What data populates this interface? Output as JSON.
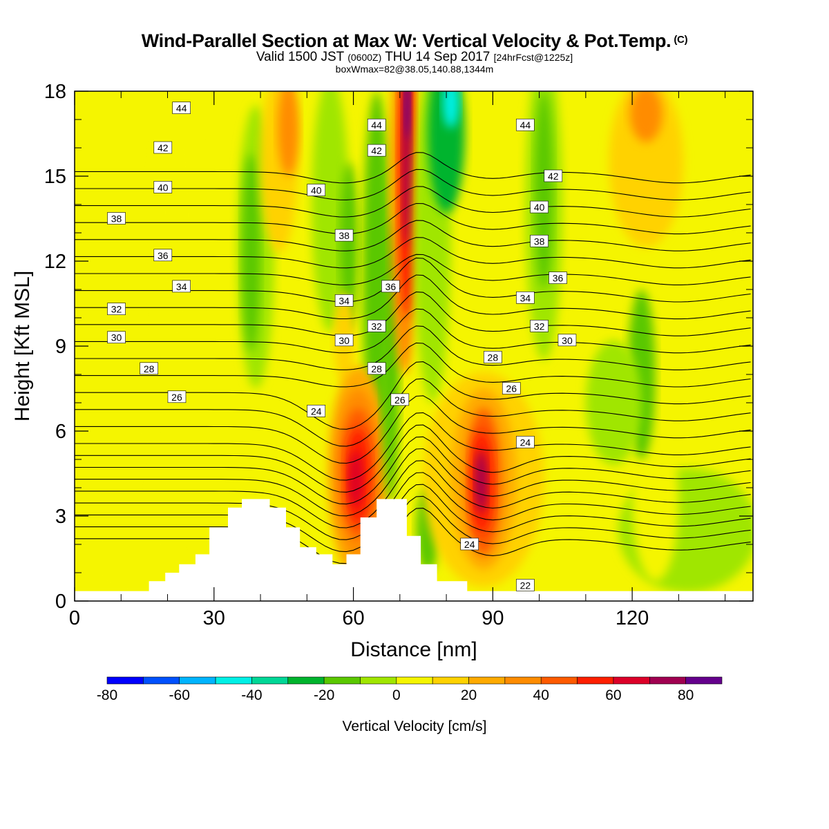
{
  "header": {
    "title": "Wind-Parallel Section at Max W: Vertical Velocity & Pot.Temp.",
    "copyright_mark": "(C)",
    "subtitle_valid": "Valid 1500 JST",
    "subtitle_zulu": "(0600Z)",
    "subtitle_date": "THU 14 Sep 2017",
    "subtitle_forecast": "[24hrFcst@1225z]",
    "box_info": "boxWmax=82@38.05,140.88,1344m"
  },
  "chart_data": {
    "type": "heatmap",
    "xlabel": "Distance [nm]",
    "ylabel": "Height [Kft MSL]",
    "xlim": [
      0,
      146
    ],
    "ylim": [
      0,
      18
    ],
    "x_ticks": [
      "0",
      "30",
      "60",
      "90",
      "120"
    ],
    "x_tick_values": [
      0,
      30,
      60,
      90,
      120
    ],
    "y_ticks": [
      "0",
      "3",
      "6",
      "9",
      "12",
      "15",
      "18"
    ],
    "y_tick_values": [
      0,
      3,
      6,
      9,
      12,
      15,
      18
    ],
    "colorbar": {
      "label": "Vertical Velocity [cm/s]",
      "range": [
        -80,
        90
      ],
      "step": 10,
      "tick_labels": [
        "-80",
        "-60",
        "-40",
        "-20",
        "0",
        "20",
        "40",
        "60",
        "80"
      ],
      "tick_values": [
        -80,
        -60,
        -40,
        -20,
        0,
        20,
        40,
        60,
        80
      ],
      "colors": [
        "#0000ff",
        "#0050ff",
        "#00b4ff",
        "#00f0e6",
        "#00d796",
        "#00b42d",
        "#5ac800",
        "#a0e600",
        "#f5f500",
        "#ffd200",
        "#ffaa00",
        "#ff8c00",
        "#ff5a00",
        "#ff1e00",
        "#dc0028",
        "#a00050",
        "#64008c"
      ]
    },
    "vertical_velocity_cells": [
      {
        "x": 60.5,
        "y": 4.5,
        "value": 60
      },
      {
        "x": 87.5,
        "y": 4.2,
        "value": 70
      },
      {
        "x": 71.5,
        "y": 16.5,
        "value": 80
      },
      {
        "x": 81,
        "y": 17.5,
        "value": -40
      },
      {
        "x": 65,
        "y": 12,
        "value": -20
      },
      {
        "x": 38,
        "y": 12.5,
        "value": -20
      },
      {
        "x": 122,
        "y": 8,
        "value": -20
      },
      {
        "x": 45,
        "y": 16.5,
        "value": 30
      },
      {
        "x": 123,
        "y": 17,
        "value": 40
      }
    ],
    "theta_contours": [
      {
        "value": 22,
        "label": "22",
        "label_x": 97,
        "label_y": 0.55
      },
      {
        "value": 24,
        "label": "24",
        "label_x": 85,
        "label_y": 2.0
      },
      {
        "value": 24,
        "label": "24",
        "label_x": 52,
        "label_y": 6.7
      },
      {
        "value": 24,
        "label": "24",
        "label_x": 97,
        "label_y": 5.6
      },
      {
        "value": 26,
        "label": "26",
        "label_x": 22,
        "label_y": 7.2
      },
      {
        "value": 26,
        "label": "26",
        "label_x": 70,
        "label_y": 7.1
      },
      {
        "value": 26,
        "label": "26",
        "label_x": 94,
        "label_y": 7.5
      },
      {
        "value": 28,
        "label": "28",
        "label_x": 16,
        "label_y": 8.2
      },
      {
        "value": 28,
        "label": "28",
        "label_x": 65,
        "label_y": 8.2
      },
      {
        "value": 28,
        "label": "28",
        "label_x": 90,
        "label_y": 8.6
      },
      {
        "value": 30,
        "label": "30",
        "label_x": 9,
        "label_y": 9.3
      },
      {
        "value": 30,
        "label": "30",
        "label_x": 58,
        "label_y": 9.2
      },
      {
        "value": 30,
        "label": "30",
        "label_x": 106,
        "label_y": 9.2
      },
      {
        "value": 32,
        "label": "32",
        "label_x": 9,
        "label_y": 10.3
      },
      {
        "value": 32,
        "label": "32",
        "label_x": 65,
        "label_y": 9.7
      },
      {
        "value": 32,
        "label": "32",
        "label_x": 100,
        "label_y": 9.7
      },
      {
        "value": 34,
        "label": "34",
        "label_x": 23,
        "label_y": 11.1
      },
      {
        "value": 34,
        "label": "34",
        "label_x": 58,
        "label_y": 10.6
      },
      {
        "value": 34,
        "label": "34",
        "label_x": 97,
        "label_y": 10.7
      },
      {
        "value": 36,
        "label": "36",
        "label_x": 19,
        "label_y": 12.2
      },
      {
        "value": 36,
        "label": "36",
        "label_x": 68,
        "label_y": 11.1
      },
      {
        "value": 36,
        "label": "36",
        "label_x": 104,
        "label_y": 11.4
      },
      {
        "value": 38,
        "label": "38",
        "label_x": 9,
        "label_y": 13.5
      },
      {
        "value": 38,
        "label": "38",
        "label_x": 58,
        "label_y": 12.9
      },
      {
        "value": 38,
        "label": "38",
        "label_x": 100,
        "label_y": 12.7
      },
      {
        "value": 40,
        "label": "40",
        "label_x": 19,
        "label_y": 14.6
      },
      {
        "value": 40,
        "label": "40",
        "label_x": 52,
        "label_y": 14.5
      },
      {
        "value": 40,
        "label": "40",
        "label_x": 100,
        "label_y": 13.9
      },
      {
        "value": 42,
        "label": "42",
        "label_x": 19,
        "label_y": 16.0
      },
      {
        "value": 42,
        "label": "42",
        "label_x": 65,
        "label_y": 15.9
      },
      {
        "value": 42,
        "label": "42",
        "label_x": 103,
        "label_y": 15.0
      },
      {
        "value": 44,
        "label": "44",
        "label_x": 23,
        "label_y": 17.4
      },
      {
        "value": 44,
        "label": "44",
        "label_x": 65,
        "label_y": 16.8
      },
      {
        "value": 44,
        "label": "44",
        "label_x": 97,
        "label_y": 16.8
      }
    ],
    "terrain": [
      {
        "x": 0,
        "h": 0.35
      },
      {
        "x": 16,
        "h": 0.35
      },
      {
        "x": 16,
        "h": 0.7
      },
      {
        "x": 19.5,
        "h": 0.7
      },
      {
        "x": 19.5,
        "h": 1.0
      },
      {
        "x": 22.5,
        "h": 1.0
      },
      {
        "x": 22.5,
        "h": 1.3
      },
      {
        "x": 26,
        "h": 1.3
      },
      {
        "x": 26,
        "h": 1.65
      },
      {
        "x": 29,
        "h": 1.65
      },
      {
        "x": 29,
        "h": 2.6
      },
      {
        "x": 33,
        "h": 2.6
      },
      {
        "x": 33,
        "h": 3.3
      },
      {
        "x": 36,
        "h": 3.3
      },
      {
        "x": 36,
        "h": 3.6
      },
      {
        "x": 42,
        "h": 3.6
      },
      {
        "x": 42,
        "h": 3.3
      },
      {
        "x": 45.5,
        "h": 3.3
      },
      {
        "x": 45.5,
        "h": 2.6
      },
      {
        "x": 48.5,
        "h": 2.6
      },
      {
        "x": 48.5,
        "h": 1.9
      },
      {
        "x": 52,
        "h": 1.9
      },
      {
        "x": 52,
        "h": 1.65
      },
      {
        "x": 55.5,
        "h": 1.65
      },
      {
        "x": 55.5,
        "h": 1.3
      },
      {
        "x": 58.5,
        "h": 1.3
      },
      {
        "x": 58.5,
        "h": 1.65
      },
      {
        "x": 61.5,
        "h": 1.65
      },
      {
        "x": 61.5,
        "h": 2.95
      },
      {
        "x": 65,
        "h": 2.95
      },
      {
        "x": 65,
        "h": 3.6
      },
      {
        "x": 71.5,
        "h": 3.6
      },
      {
        "x": 71.5,
        "h": 2.3
      },
      {
        "x": 74.5,
        "h": 2.3
      },
      {
        "x": 74.5,
        "h": 1.3
      },
      {
        "x": 78,
        "h": 1.3
      },
      {
        "x": 78,
        "h": 0.7
      },
      {
        "x": 84.5,
        "h": 0.7
      },
      {
        "x": 84.5,
        "h": 0.35
      },
      {
        "x": 146,
        "h": 0.35
      }
    ]
  }
}
